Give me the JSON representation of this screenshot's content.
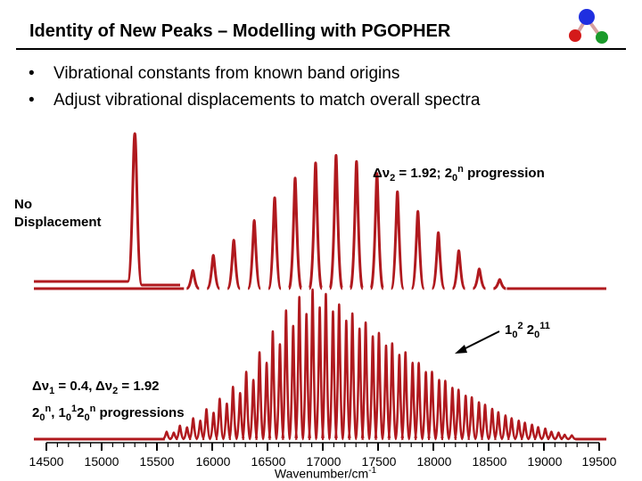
{
  "slide": {
    "title": "Identity of New Peaks – Modelling with PGOPHER",
    "bullets": [
      "Vibrational constants from known band origins",
      "Adjust vibrational displacements to match overall spectra"
    ]
  },
  "colors": {
    "trace": "#b0191e",
    "logo_blue": "#1f2fe0",
    "logo_red": "#d41a1a",
    "logo_green": "#1a9a2a",
    "logo_line": "#d8a0a0"
  },
  "icons": {
    "logo": "pgopher-molecule-logo-icon",
    "bullet": "bullet-icon",
    "arrow": "annotation-arrow-icon"
  },
  "chart_data": {
    "type": "line",
    "xlabel": "Wavenumber/cm-1",
    "xticks": [
      14500,
      15000,
      15500,
      16000,
      16500,
      17000,
      17500,
      18000,
      18500,
      19000,
      19500
    ],
    "xlim": [
      14500,
      19500
    ],
    "panels": [
      {
        "name": "No Displacement",
        "annotation": "Δν2 = 1.92; 20n progression",
        "single_peak": {
          "x": 15300,
          "height": 1.0
        },
        "peaks_x": [
          15825,
          16010,
          16195,
          16380,
          16565,
          16750,
          16935,
          17120,
          17305,
          17490,
          17675,
          17860,
          18045,
          18230,
          18415,
          18600
        ],
        "peaks_height": [
          0.12,
          0.22,
          0.32,
          0.45,
          0.6,
          0.73,
          0.83,
          0.88,
          0.84,
          0.76,
          0.64,
          0.51,
          0.37,
          0.25,
          0.13,
          0.06
        ]
      },
      {
        "name": "Δν1 = 0.4, Δν2 = 1.92 20n, 10120n progressions",
        "annotation": "1 0 2 2 0 11",
        "peaks_x": [
          15620,
          15740,
          15860,
          15980,
          16100,
          16220,
          16340,
          16460,
          16580,
          16700,
          16820,
          16940,
          17060,
          17180,
          17300,
          17420,
          17540,
          17660,
          17780,
          17900,
          18020,
          18140,
          18260,
          18380,
          18500,
          18620,
          18740,
          18860,
          18980,
          19100,
          19220
        ],
        "peaks_height": [
          0.05,
          0.09,
          0.14,
          0.2,
          0.27,
          0.35,
          0.45,
          0.58,
          0.72,
          0.86,
          0.95,
          1.0,
          0.97,
          0.9,
          0.84,
          0.78,
          0.71,
          0.64,
          0.58,
          0.51,
          0.45,
          0.39,
          0.33,
          0.28,
          0.23,
          0.18,
          0.14,
          0.11,
          0.08,
          0.05,
          0.03
        ]
      }
    ]
  },
  "labels": {
    "no_displacement_1": "No",
    "no_displacement_2": "Displacement",
    "prog_pre": "Δν",
    "prog_sub": "2",
    "prog_mid": " = 1.92; 2",
    "prog_sub2": "0",
    "prog_sup": "n",
    "prog_post": " progression",
    "disp_a1": "Δν",
    "disp_a1_sub": "1",
    "disp_a2": " = 0.4, Δν",
    "disp_a2_sub": "2",
    "disp_a3": " = 1.92",
    "disp_b1": "2",
    "disp_b1_sub": "0",
    "disp_b1_sup": "n",
    "disp_b2": ", 1",
    "disp_b2_sub": "0",
    "disp_b2_sup": "1",
    "disp_b3": "2",
    "disp_b3_sub": "0",
    "disp_b3_sup": "n",
    "disp_b4": " progressions",
    "anno_1": "1",
    "anno_1_sub": "0",
    "anno_1_sup": "2",
    "anno_2": " 2",
    "anno_2_sub": "0",
    "anno_2_sup": "11",
    "xlabel_main": "Wavenumber/cm",
    "xlabel_sup": "-1"
  }
}
